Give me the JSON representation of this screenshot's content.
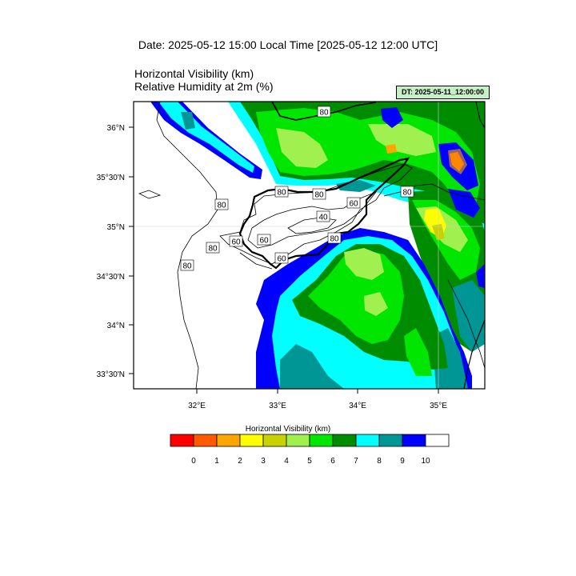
{
  "header": {
    "date_title": "Date: 2025-05-12  15:00 Local Time [2025-05-12  12:00 UTC]",
    "field_title_1": "Horizontal Visibility   (km)",
    "field_title_2": "Relative Humidity at 2m   (%)",
    "dt_badge": "DT: 2025-05-11_12:00:00"
  },
  "map": {
    "lat_labels": [
      "36°N",
      "35°30'N",
      "35°N",
      "34°30'N",
      "34°N",
      "33°30'N"
    ],
    "lon_labels": [
      "32°E",
      "33°E",
      "34°E",
      "35°E"
    ],
    "contour_labels": [
      "80",
      "80",
      "80",
      "80",
      "80",
      "60",
      "60",
      "80",
      "40",
      "60",
      "80",
      "60",
      "80"
    ]
  },
  "legend": {
    "title": "Horizontal Visibility  (km)",
    "ticks": [
      "0",
      "1",
      "2",
      "3",
      "4",
      "5",
      "6",
      "7",
      "8",
      "9",
      "10"
    ],
    "colors": [
      "#ff0000",
      "#ff5a00",
      "#ffa500",
      "#ffff00",
      "#c8d200",
      "#a0f050",
      "#00e600",
      "#008c00",
      "#00ffff",
      "#009696",
      "#0000ff",
      "#ffffff"
    ]
  }
}
